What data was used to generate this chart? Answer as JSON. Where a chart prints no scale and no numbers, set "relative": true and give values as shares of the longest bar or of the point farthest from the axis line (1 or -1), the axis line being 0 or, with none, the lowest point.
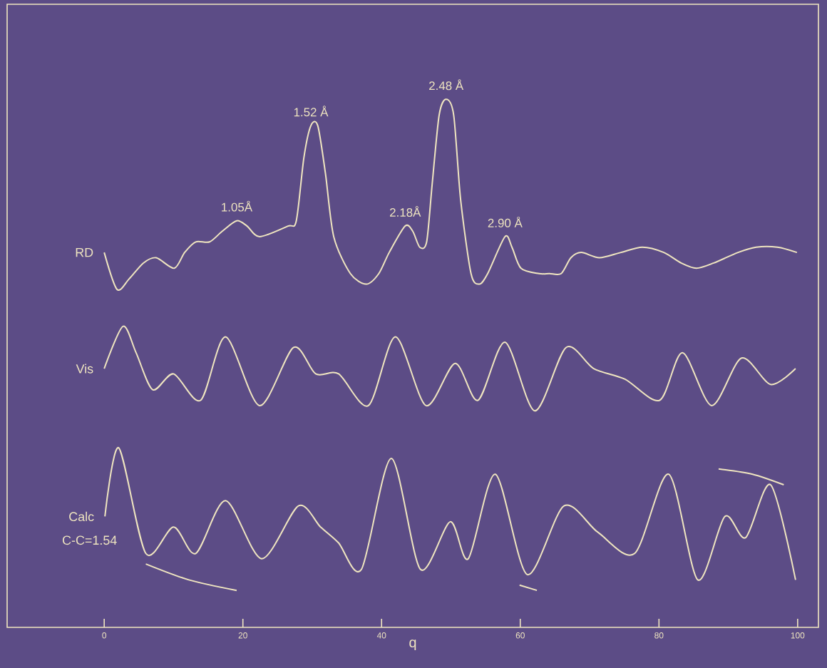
{
  "chart_data": {
    "type": "line",
    "relative": true,
    "xlabel": "q",
    "xlim": [
      -14,
      103
    ],
    "xticks": [
      0,
      20,
      40,
      60,
      80,
      100
    ],
    "annotations": [
      {
        "text": "1.05Å",
        "x": 19.1,
        "y": 0.77
      },
      {
        "text": "1.52 Å",
        "x": 29.8,
        "y": 0.95
      },
      {
        "text": "2.18Å",
        "x": 43.4,
        "y": 0.76
      },
      {
        "text": "2.48 Å",
        "x": 49.3,
        "y": 1.0
      },
      {
        "text": "2.90 Å",
        "x": 57.8,
        "y": 0.74
      },
      "C-C=1.54"
    ],
    "series": [
      {
        "name": "RD",
        "color": "#f0e6c0",
        "x": [
          0,
          1.85,
          3.6,
          5.65,
          7.5,
          10.1,
          11.6,
          13.2,
          15.2,
          17.0,
          19.1,
          20.6,
          22.4,
          26.5,
          27.7,
          28.8,
          29.8,
          30.8,
          31.9,
          33.1,
          35.5,
          37.8,
          39.6,
          41.1,
          43.4,
          44.5,
          45.5,
          46.5,
          47.3,
          48.3,
          49.3,
          50.4,
          51.4,
          52.9,
          54.1,
          55.3,
          57.8,
          58.8,
          60.1,
          62.7,
          64.2,
          65.9,
          67.3,
          68.8,
          71.4,
          74.5,
          77.6,
          80.7,
          83.2,
          85.4,
          87.9,
          91.4,
          94.0,
          97.1,
          99.9
        ],
        "values": [
          0.71,
          0.64,
          0.66,
          0.69,
          0.7,
          0.68,
          0.71,
          0.73,
          0.73,
          0.75,
          0.77,
          0.76,
          0.74,
          0.76,
          0.77,
          0.89,
          0.95,
          0.95,
          0.86,
          0.74,
          0.67,
          0.65,
          0.67,
          0.71,
          0.76,
          0.75,
          0.72,
          0.73,
          0.84,
          0.97,
          1.0,
          0.97,
          0.81,
          0.67,
          0.65,
          0.67,
          0.74,
          0.72,
          0.68,
          0.67,
          0.67,
          0.67,
          0.7,
          0.71,
          0.7,
          0.71,
          0.72,
          0.71,
          0.69,
          0.68,
          0.69,
          0.71,
          0.72,
          0.72,
          0.71
        ]
      },
      {
        "name": "Vis",
        "color": "#f0e6c0",
        "x": [
          0,
          2.7,
          4.6,
          7.0,
          10.0,
          13.9,
          17.5,
          22.4,
          27.3,
          30.5,
          33.8,
          38.1,
          42.0,
          46.4,
          50.6,
          53.9,
          57.8,
          62.1,
          66.6,
          70.6,
          75.1,
          80.1,
          83.4,
          87.6,
          91.9,
          96.1,
          99.7
        ],
        "values": [
          0.49,
          0.57,
          0.52,
          0.45,
          0.48,
          0.43,
          0.55,
          0.42,
          0.53,
          0.48,
          0.48,
          0.42,
          0.55,
          0.42,
          0.5,
          0.43,
          0.54,
          0.41,
          0.53,
          0.49,
          0.47,
          0.43,
          0.52,
          0.42,
          0.51,
          0.46,
          0.49
        ]
      },
      {
        "name": "Calc",
        "color": "#f0e6c0",
        "x": [
          0.1,
          2.1,
          6.0,
          10.0,
          13.2,
          17.5,
          22.7,
          28.0,
          31.2,
          33.8,
          37.1,
          41.4,
          45.6,
          49.9,
          52.5,
          56.4,
          61.0,
          66.3,
          71.2,
          76.5,
          81.4,
          85.6,
          89.5,
          92.5,
          96.1,
          99.7
        ],
        "values": [
          0.21,
          0.34,
          0.14,
          0.19,
          0.14,
          0.24,
          0.13,
          0.23,
          0.19,
          0.16,
          0.11,
          0.32,
          0.11,
          0.2,
          0.13,
          0.29,
          0.1,
          0.23,
          0.18,
          0.14,
          0.29,
          0.09,
          0.21,
          0.17,
          0.27,
          0.09
        ]
      },
      {
        "color": "#f0e6c0",
        "x": [
          6.0,
          12.2,
          19.1
        ],
        "values": [
          0.12,
          0.09,
          0.07
        ]
      },
      {
        "color": "#f0e6c0",
        "x": [
          59.9,
          62.4
        ],
        "values": [
          0.08,
          0.07
        ]
      },
      {
        "color": "#f0e6c0",
        "x": [
          88.6,
          93.5,
          98.0
        ],
        "values": [
          0.3,
          0.29,
          0.27
        ]
      }
    ]
  }
}
